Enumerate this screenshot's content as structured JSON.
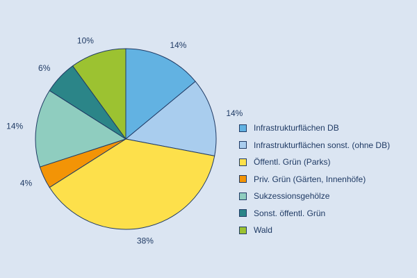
{
  "chart_data": {
    "type": "pie",
    "title": "",
    "slices": [
      {
        "label": "Infrastrukturflächen DB",
        "value": 14,
        "value_label": "14%",
        "color": "#62b2e2"
      },
      {
        "label": "Infrastrukturflächen sonst. (ohne DB)",
        "value": 14,
        "value_label": "14%",
        "color": "#a9cdee"
      },
      {
        "label": "Öffentl. Grün (Parks)",
        "value": 38,
        "value_label": "38%",
        "color": "#fde04b"
      },
      {
        "label": "Priv. Grün (Gärten, Innenhöfe)",
        "value": 4,
        "value_label": "4%",
        "color": "#f39406"
      },
      {
        "label": "Sukzessionsgehölze",
        "value": 14,
        "value_label": "14%",
        "color": "#8fcdbf"
      },
      {
        "label": "Sonst. öffentl. Grün",
        "value": 6,
        "value_label": "6%",
        "color": "#2b8588"
      },
      {
        "label": "Wald",
        "value": 10,
        "value_label": "10%",
        "color": "#9cc231"
      }
    ],
    "start_angle": "12 o'clock",
    "direction": "clockwise",
    "legend_position": "right"
  }
}
